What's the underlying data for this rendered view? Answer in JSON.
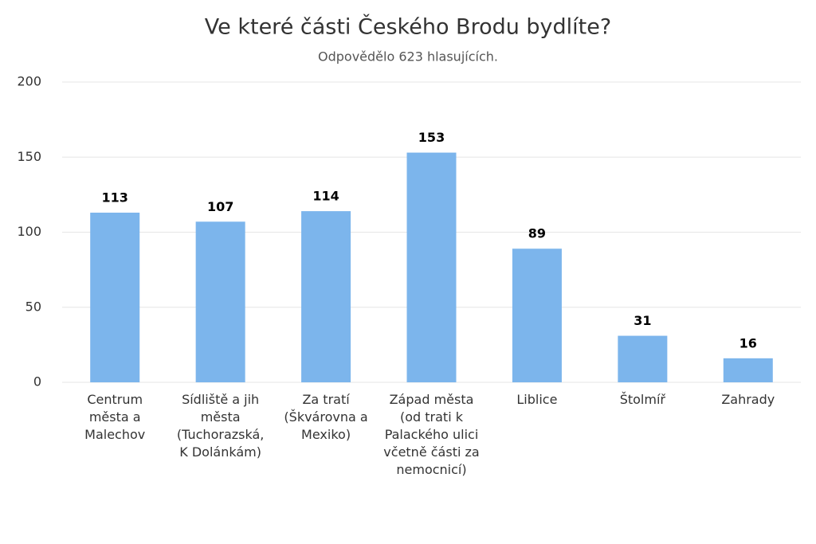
{
  "chart_data": {
    "type": "bar",
    "title": "Ve které části Českého Brodu bydlíte?",
    "subtitle": "Odpovědělo 623 hlasujících.",
    "categories": [
      "Centrum města a Malechov",
      "Sídliště a jih města (Tuchorazská, K Dolánkám)",
      "Za tratí (Škvárovna a Mexiko)",
      "Západ města (od trati k Palackého ulici včetně části za nemocnicí)",
      "Liblice",
      "Štolmíř",
      "Zahrady"
    ],
    "values": [
      113,
      107,
      114,
      153,
      89,
      31,
      16
    ],
    "color": "#7cb5ec",
    "ylim": [
      0,
      200
    ],
    "yticks": [
      0,
      50,
      100,
      150,
      200
    ],
    "grid": true
  }
}
